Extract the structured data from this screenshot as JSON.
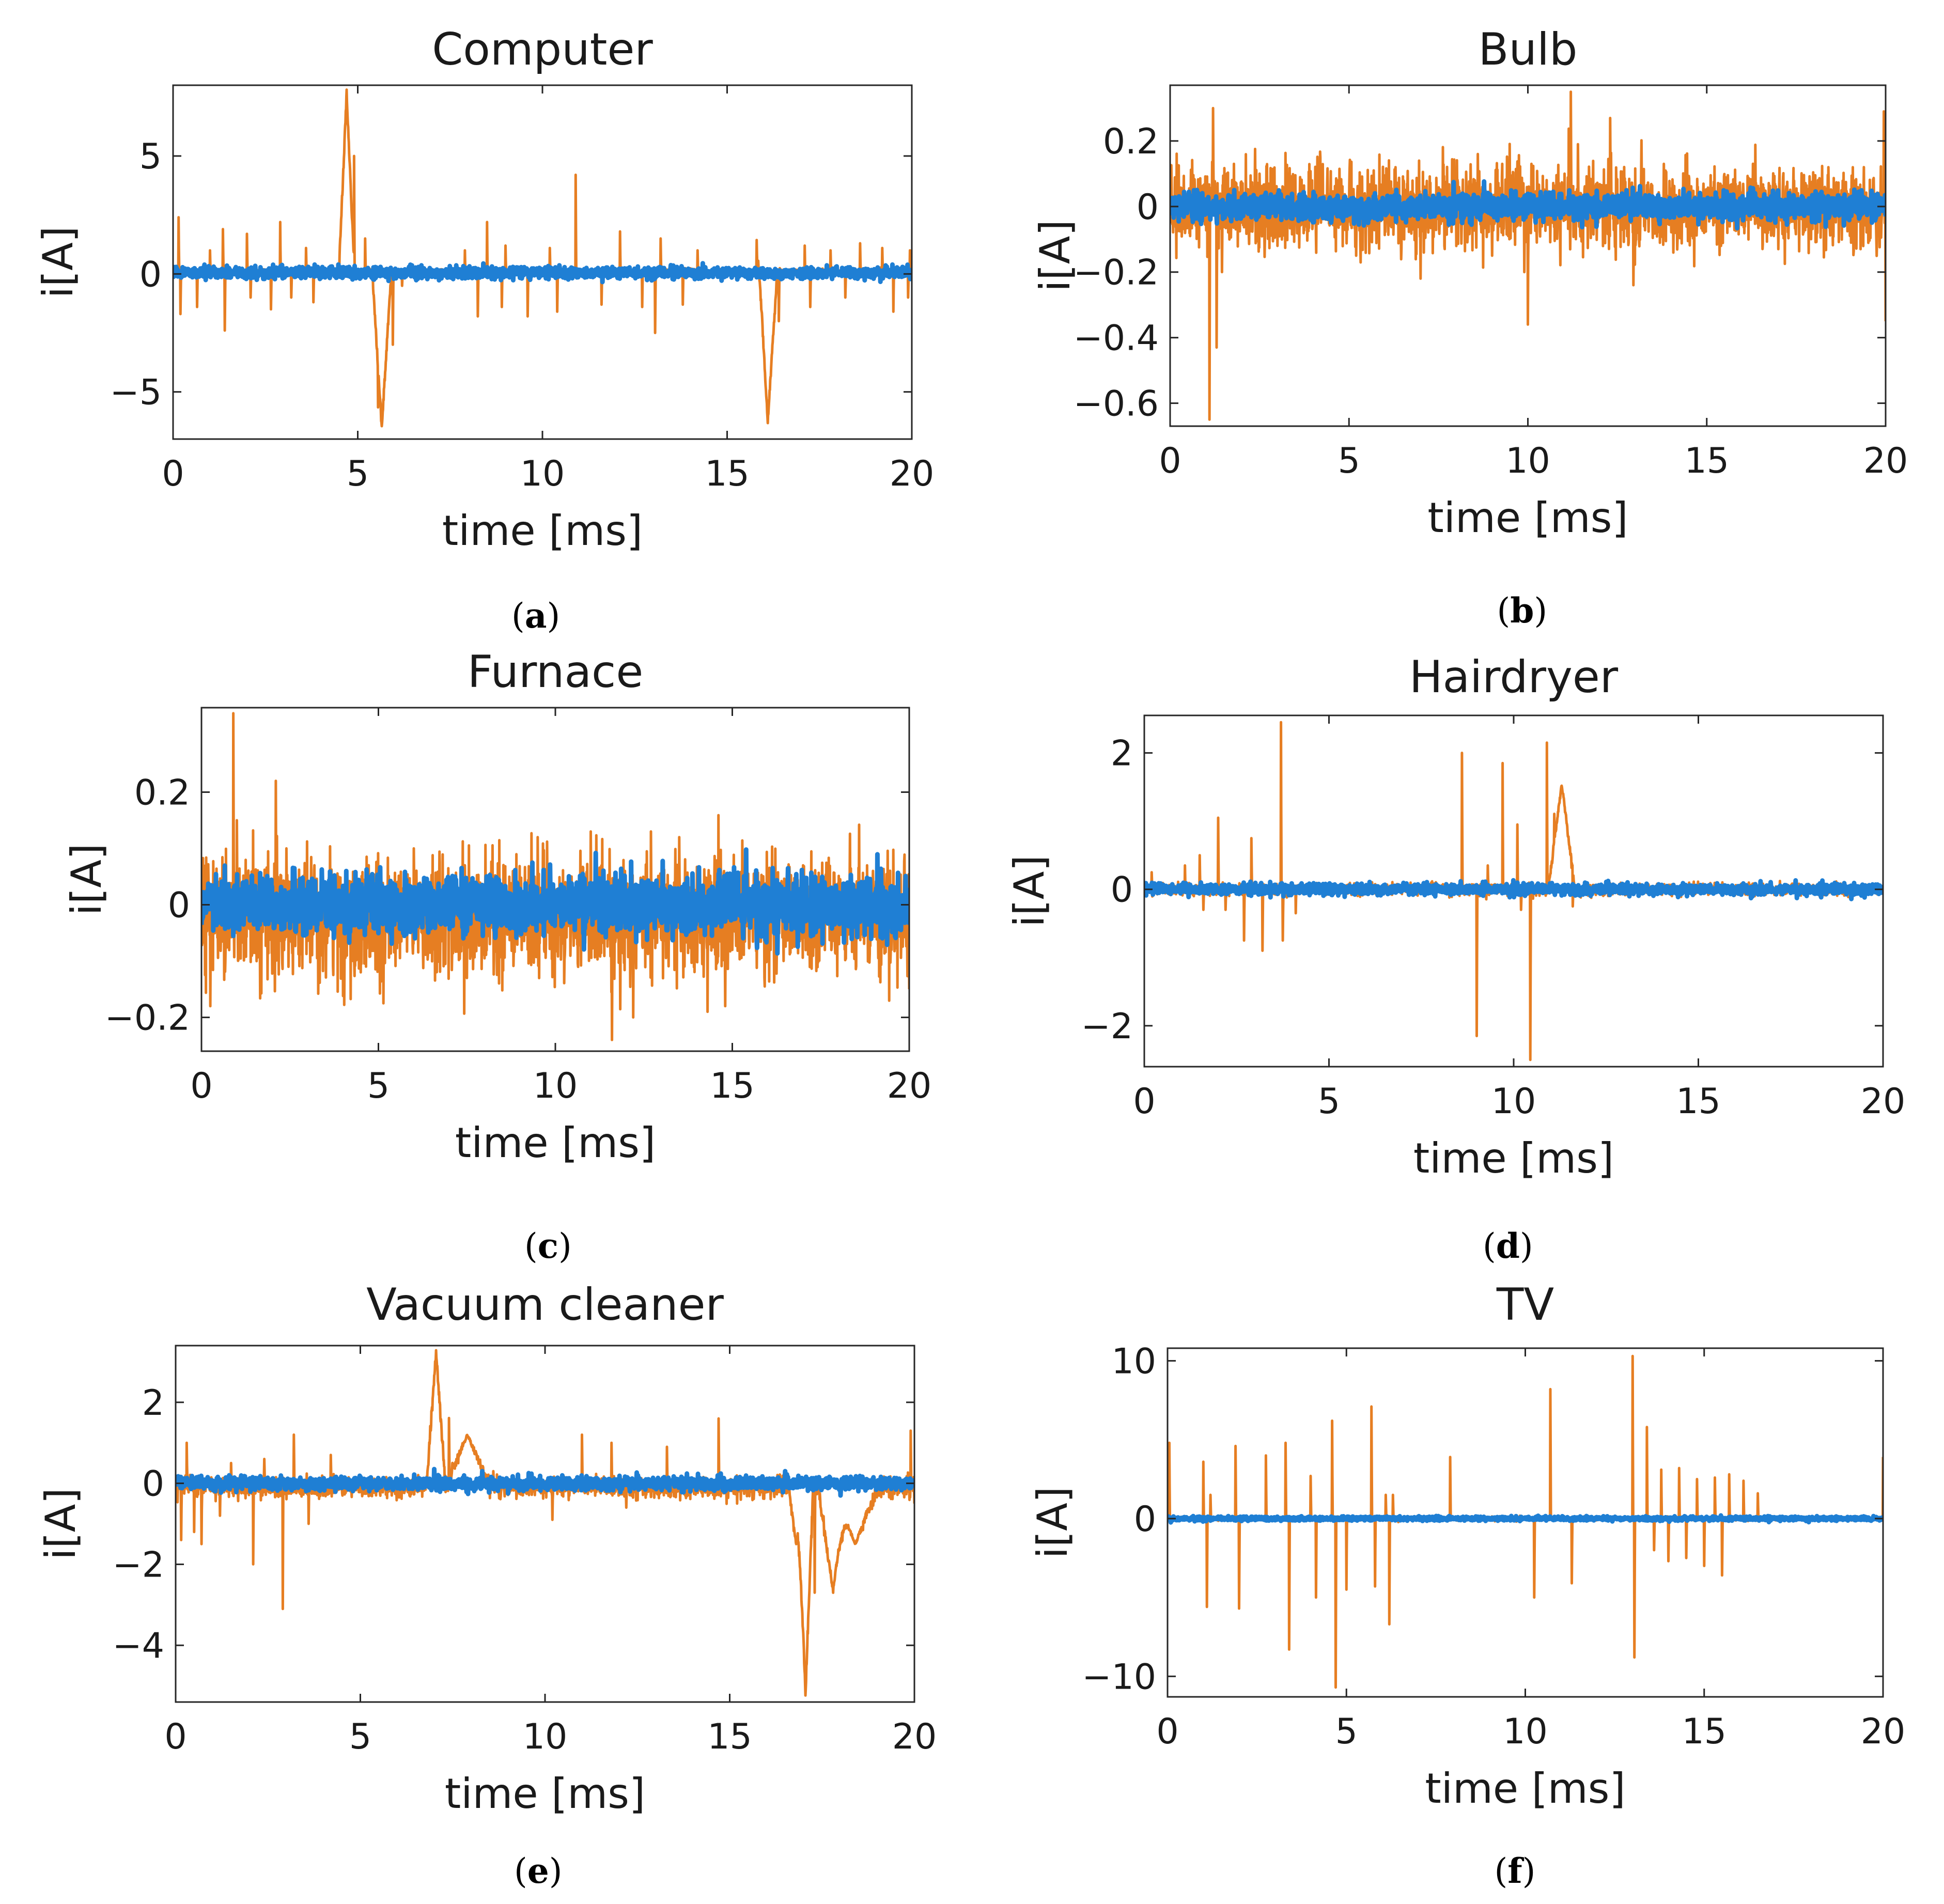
{
  "figure": {
    "colors": {
      "series_orange": "#e67e22",
      "series_blue": "#1f7fd4",
      "axis": "#262626"
    }
  },
  "chart_data": [
    {
      "type": "line",
      "caption": "a",
      "title": "Computer",
      "xlabel": "time [ms]",
      "ylabel": "i[A]",
      "xlim": [
        0,
        20
      ],
      "ylim": [
        -7,
        8
      ],
      "xticks": [
        0,
        5,
        10,
        15,
        20
      ],
      "yticks": [
        -5,
        0,
        5
      ],
      "ytick_labels": [
        "−5",
        "0",
        "5"
      ],
      "series": [
        {
          "name": "orange",
          "color": "#e67e22",
          "baseline": 0.1,
          "noise": 0.05,
          "features": [
            [
              0.15,
              2.4
            ],
            [
              0.2,
              -1.7
            ],
            [
              0.65,
              -1.4
            ],
            [
              1.0,
              1.0
            ],
            [
              1.35,
              1.9
            ],
            [
              1.4,
              -2.4
            ],
            [
              2.0,
              1.7
            ],
            [
              2.1,
              -1.0
            ],
            [
              2.65,
              -1.5
            ],
            [
              2.9,
              2.2
            ],
            [
              3.2,
              -1.0
            ],
            [
              3.6,
              1.1
            ],
            [
              3.8,
              -1.2
            ],
            [
              4.7,
              7.7,
              "ramp",
              0.2
            ],
            [
              4.9,
              5.0
            ],
            [
              5.2,
              1.5
            ],
            [
              5.55,
              -4.0
            ],
            [
              5.65,
              -6.5,
              "ramp",
              0.25
            ],
            [
              5.95,
              -3.0
            ],
            [
              6.2,
              -0.5
            ],
            [
              7.9,
              1.0
            ],
            [
              8.25,
              -1.8
            ],
            [
              8.5,
              2.2
            ],
            [
              8.9,
              -1.4
            ],
            [
              9.0,
              1.2
            ],
            [
              9.6,
              -1.8
            ],
            [
              10.2,
              1.1
            ],
            [
              10.4,
              -1.6
            ],
            [
              10.9,
              4.2
            ],
            [
              11.6,
              -1.3
            ],
            [
              12.1,
              1.8
            ],
            [
              12.7,
              -1.4
            ],
            [
              13.05,
              -2.5
            ],
            [
              13.2,
              1.5
            ],
            [
              13.8,
              -1.3
            ],
            [
              14.2,
              1.0
            ],
            [
              15.8,
              1.6
            ],
            [
              15.95,
              1.0,
              "ramp",
              0.2
            ],
            [
              16.1,
              -6.2,
              "ramp",
              0.25
            ],
            [
              16.4,
              -2.0
            ],
            [
              17.1,
              1.2
            ],
            [
              17.25,
              -1.4
            ],
            [
              17.8,
              1.0
            ],
            [
              18.2,
              -1.0
            ],
            [
              18.6,
              1.3
            ],
            [
              19.2,
              1.1
            ],
            [
              19.5,
              -1.6
            ],
            [
              19.95,
              1.0
            ],
            [
              19.9,
              -1.0
            ]
          ]
        },
        {
          "name": "blue",
          "color": "#1f7fd4",
          "baseline": 0.05,
          "noise": 0.12,
          "features": []
        }
      ]
    },
    {
      "type": "line",
      "caption": "b",
      "title": "Bulb",
      "xlabel": "time [ms]",
      "ylabel": "i[A]",
      "xlim": [
        0,
        20
      ],
      "ylim": [
        -0.67,
        0.37
      ],
      "xticks": [
        0,
        5,
        10,
        15,
        20
      ],
      "yticks": [
        -0.6,
        -0.4,
        -0.2,
        0,
        0.2
      ],
      "ytick_labels": [
        "−0.6",
        "−0.4",
        "−0.2",
        "0",
        "0.2"
      ],
      "series": [
        {
          "name": "orange",
          "color": "#e67e22",
          "baseline": 0.0,
          "noise": 0.06,
          "features": [
            [
              1.1,
              0.34
            ],
            [
              1.1,
              -0.65
            ],
            [
              1.2,
              0.3
            ],
            [
              1.3,
              -0.43
            ],
            [
              1.45,
              -0.2
            ],
            [
              2.5,
              0.1
            ],
            [
              3.0,
              -0.12
            ],
            [
              4.1,
              0.1
            ],
            [
              5.2,
              -0.15
            ],
            [
              6.3,
              0.12
            ],
            [
              7.0,
              -0.22
            ],
            [
              8.6,
              0.16
            ],
            [
              9.0,
              -0.15
            ],
            [
              9.9,
              -0.2
            ],
            [
              10.0,
              -0.36
            ],
            [
              10.1,
              0.13
            ],
            [
              11.2,
              0.35
            ],
            [
              11.4,
              0.19
            ],
            [
              12.3,
              0.27
            ],
            [
              12.95,
              -0.24
            ],
            [
              13.8,
              0.13
            ],
            [
              15.4,
              -0.12
            ],
            [
              17.0,
              -0.13
            ],
            [
              18.4,
              0.12
            ],
            [
              19.3,
              -0.13
            ],
            [
              19.95,
              0.29
            ],
            [
              20.0,
              -0.35
            ]
          ]
        },
        {
          "name": "blue",
          "color": "#1f7fd4",
          "baseline": 0.0,
          "noise": 0.02,
          "features": []
        }
      ]
    },
    {
      "type": "line",
      "caption": "c",
      "title": "Furnace",
      "xlabel": "time [ms]",
      "ylabel": "i[A]",
      "xlim": [
        0,
        20
      ],
      "ylim": [
        -0.26,
        0.35
      ],
      "xticks": [
        0,
        5,
        10,
        15,
        20
      ],
      "yticks": [
        -0.2,
        0,
        0.2
      ],
      "ytick_labels": [
        "−0.2",
        "0",
        "0.2"
      ],
      "series": [
        {
          "name": "orange",
          "color": "#e67e22",
          "baseline": -0.02,
          "noise": 0.05,
          "features": [
            [
              0.25,
              -0.18
            ],
            [
              0.9,
              0.34
            ],
            [
              1.0,
              0.15
            ],
            [
              2.1,
              0.22
            ],
            [
              2.4,
              0.1
            ],
            [
              3.0,
              -0.05
            ],
            [
              4.5,
              -0.12
            ],
            [
              6.0,
              0.1
            ],
            [
              7.5,
              -0.13
            ],
            [
              9.5,
              0.12
            ],
            [
              11.0,
              0.13
            ],
            [
              11.6,
              -0.24
            ],
            [
              12.2,
              -0.2
            ],
            [
              12.7,
              0.13
            ],
            [
              13.5,
              0.12
            ],
            [
              14.3,
              -0.19
            ],
            [
              14.8,
              -0.18
            ],
            [
              17.0,
              0.07
            ],
            [
              19.5,
              -0.08
            ],
            [
              20.0,
              -0.15
            ]
          ]
        },
        {
          "name": "blue",
          "color": "#1f7fd4",
          "baseline": 0.0,
          "noise": 0.025,
          "features": []
        }
      ]
    },
    {
      "type": "line",
      "caption": "d",
      "title": "Hairdryer",
      "xlabel": "time [ms]",
      "ylabel": "i[A]",
      "xlim": [
        0,
        20
      ],
      "ylim": [
        -2.6,
        2.55
      ],
      "xticks": [
        0,
        5,
        10,
        15,
        20
      ],
      "yticks": [
        -2,
        0,
        2
      ],
      "ytick_labels": [
        "−2",
        "0",
        "2"
      ],
      "series": [
        {
          "name": "orange",
          "color": "#e67e22",
          "baseline": 0.0,
          "noise": 0.04,
          "features": [
            [
              0.2,
              0.25
            ],
            [
              1.1,
              0.35
            ],
            [
              1.5,
              0.5
            ],
            [
              1.6,
              -0.3
            ],
            [
              2.0,
              1.05
            ],
            [
              2.2,
              -0.3
            ],
            [
              2.7,
              -0.75
            ],
            [
              2.9,
              0.75
            ],
            [
              3.2,
              -0.9
            ],
            [
              3.7,
              2.45
            ],
            [
              3.75,
              -0.75
            ],
            [
              4.1,
              -0.35
            ],
            [
              8.6,
              2.0
            ],
            [
              9.0,
              -2.15
            ],
            [
              9.3,
              0.35
            ],
            [
              9.7,
              1.85
            ],
            [
              10.1,
              0.95
            ],
            [
              10.2,
              -0.3
            ],
            [
              10.45,
              -2.5
            ],
            [
              10.9,
              2.15
            ],
            [
              11.1,
              0.7
            ],
            [
              11.3,
              1.55,
              "ramp",
              0.35
            ],
            [
              11.6,
              -0.25
            ]
          ]
        },
        {
          "name": "blue",
          "color": "#1f7fd4",
          "baseline": 0.0,
          "noise": 0.04,
          "features": []
        }
      ]
    },
    {
      "type": "line",
      "caption": "e",
      "title": "Vacuum cleaner",
      "xlabel": "time [ms]",
      "ylabel": "i[A]",
      "xlim": [
        0,
        20
      ],
      "ylim": [
        -5.4,
        3.4
      ],
      "xticks": [
        0,
        5,
        10,
        15,
        20
      ],
      "yticks": [
        -4,
        -2,
        0,
        2
      ],
      "ytick_labels": [
        "−4",
        "−2",
        "0",
        "2"
      ],
      "series": [
        {
          "name": "orange",
          "color": "#e67e22",
          "baseline": -0.1,
          "noise": 0.12,
          "features": [
            [
              0.15,
              -1.4
            ],
            [
              0.3,
              1.0
            ],
            [
              0.5,
              -1.2
            ],
            [
              0.7,
              -1.5
            ],
            [
              1.2,
              -0.8
            ],
            [
              1.5,
              0.5
            ],
            [
              2.1,
              -2.0
            ],
            [
              2.4,
              0.6
            ],
            [
              2.9,
              -3.1
            ],
            [
              3.2,
              1.2
            ],
            [
              3.6,
              -1.0
            ],
            [
              4.2,
              0.7
            ],
            [
              7.05,
              3.25,
              "ramp",
              0.25
            ],
            [
              7.4,
              1.7
            ],
            [
              7.9,
              1.2,
              "ramp",
              0.6
            ],
            [
              8.6,
              0.3
            ],
            [
              10.2,
              -0.9
            ],
            [
              11.0,
              1.2
            ],
            [
              11.8,
              1.0
            ],
            [
              12.2,
              -0.6
            ],
            [
              13.3,
              0.9
            ],
            [
              14.7,
              1.6
            ],
            [
              15.2,
              -0.5
            ],
            [
              16.8,
              -1.5,
              "ramp",
              0.2
            ],
            [
              17.05,
              -5.2,
              "ramp",
              0.2
            ],
            [
              17.3,
              -2.7
            ],
            [
              17.8,
              -2.7,
              "ramp",
              0.4
            ],
            [
              18.4,
              -1.5,
              "ramp",
              0.6
            ],
            [
              19.0,
              -0.3
            ],
            [
              19.9,
              1.3
            ],
            [
              20.0,
              -0.5
            ]
          ]
        },
        {
          "name": "blue",
          "color": "#1f7fd4",
          "baseline": 0.0,
          "noise": 0.08,
          "features": [
            [
              7.0,
              0.35
            ],
            [
              8.3,
              0.3
            ],
            [
              9.0,
              -0.25
            ],
            [
              16.5,
              0.3
            ],
            [
              18.0,
              -0.3
            ]
          ]
        }
      ]
    },
    {
      "type": "line",
      "caption": "f",
      "title": "TV",
      "xlabel": "time [ms]",
      "ylabel": "i[A]",
      "xlim": [
        0,
        20
      ],
      "ylim": [
        -11.3,
        10.8
      ],
      "xticks": [
        0,
        5,
        10,
        15,
        20
      ],
      "yticks": [
        -10,
        0,
        10
      ],
      "ytick_labels": [
        "−10",
        "0",
        "10"
      ],
      "series": [
        {
          "name": "orange",
          "color": "#e67e22",
          "baseline": 0.0,
          "noise": 0.05,
          "features": [
            [
              0.05,
              4.8
            ],
            [
              1.0,
              3.6
            ],
            [
              1.1,
              -5.6
            ],
            [
              1.2,
              1.5
            ],
            [
              1.9,
              4.6
            ],
            [
              2.0,
              -5.7
            ],
            [
              2.75,
              4.0
            ],
            [
              3.3,
              4.8
            ],
            [
              3.4,
              -8.3
            ],
            [
              4.0,
              2.7
            ],
            [
              4.15,
              -5.0
            ],
            [
              4.6,
              6.2
            ],
            [
              4.7,
              -10.7
            ],
            [
              5.0,
              -4.5
            ],
            [
              5.7,
              7.1
            ],
            [
              5.8,
              -4.3
            ],
            [
              6.1,
              1.5
            ],
            [
              6.2,
              -6.7
            ],
            [
              6.3,
              1.5
            ],
            [
              7.9,
              3.9
            ],
            [
              10.25,
              -5.0
            ],
            [
              10.7,
              8.2
            ],
            [
              11.3,
              -4.1
            ],
            [
              13.0,
              10.3
            ],
            [
              13.05,
              -8.8
            ],
            [
              13.4,
              5.8
            ],
            [
              13.6,
              -2.0
            ],
            [
              13.8,
              3.1
            ],
            [
              14.0,
              -2.7
            ],
            [
              14.3,
              3.2
            ],
            [
              14.5,
              -2.5
            ],
            [
              14.8,
              2.5
            ],
            [
              15.0,
              -3.0
            ],
            [
              15.3,
              2.6
            ],
            [
              15.5,
              -3.6
            ],
            [
              15.7,
              2.8
            ],
            [
              16.1,
              2.4
            ],
            [
              16.5,
              1.6
            ],
            [
              20.0,
              3.9
            ]
          ]
        },
        {
          "name": "blue",
          "color": "#1f7fd4",
          "baseline": 0.0,
          "noise": 0.06,
          "features": []
        }
      ]
    }
  ]
}
